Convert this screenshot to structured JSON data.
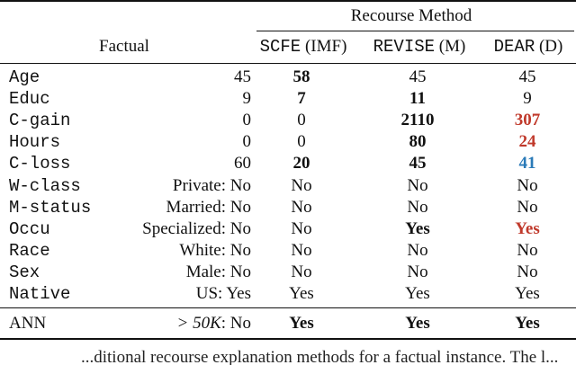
{
  "table": {
    "group_header": "Recourse Method",
    "factual_header": "Factual",
    "method_headers": [
      {
        "name": "SCFE",
        "tag": "(IMF)"
      },
      {
        "name": "REVISE",
        "tag": "(M)"
      },
      {
        "name": "DEAR",
        "tag": "(D)"
      }
    ],
    "rows": [
      {
        "feature": "Age",
        "factual": "45",
        "scfe": "58",
        "revise": "45",
        "dear": "45"
      },
      {
        "feature": "Educ",
        "factual": "9",
        "scfe": "7",
        "revise": "11",
        "dear": "9"
      },
      {
        "feature": "C-gain",
        "factual": "0",
        "scfe": "0",
        "revise": "2110",
        "dear": "307"
      },
      {
        "feature": "Hours",
        "factual": "0",
        "scfe": "0",
        "revise": "80",
        "dear": "24"
      },
      {
        "feature": "C-loss",
        "factual": "60",
        "scfe": "20",
        "revise": "45",
        "dear": "41"
      },
      {
        "feature": "W-class",
        "factual": "Private: No",
        "scfe": "No",
        "revise": "No",
        "dear": "No"
      },
      {
        "feature": "M-status",
        "factual": "Married: No",
        "scfe": "No",
        "revise": "No",
        "dear": "No"
      },
      {
        "feature": "Occu",
        "factual": "Specialized: No",
        "scfe": "No",
        "revise": "Yes",
        "dear": "Yes"
      },
      {
        "feature": "Race",
        "factual": "White: No",
        "scfe": "No",
        "revise": "No",
        "dear": "No"
      },
      {
        "feature": "Sex",
        "factual": "Male: No",
        "scfe": "No",
        "revise": "No",
        "dear": "No"
      },
      {
        "feature": "Native",
        "factual": "US: Yes",
        "scfe": "Yes",
        "revise": "Yes",
        "dear": "Yes"
      }
    ],
    "summary": {
      "feature": "ANN",
      "factual_math": "> 50K",
      "factual_value": ": No",
      "scfe": "Yes",
      "revise": "Yes",
      "dear": "Yes"
    },
    "colors": {
      "highlight_red": "#c0392b",
      "highlight_blue": "#2a7ab8"
    }
  },
  "caption_fragment": "...ditional recourse explanation methods for a factual instance. The l..."
}
